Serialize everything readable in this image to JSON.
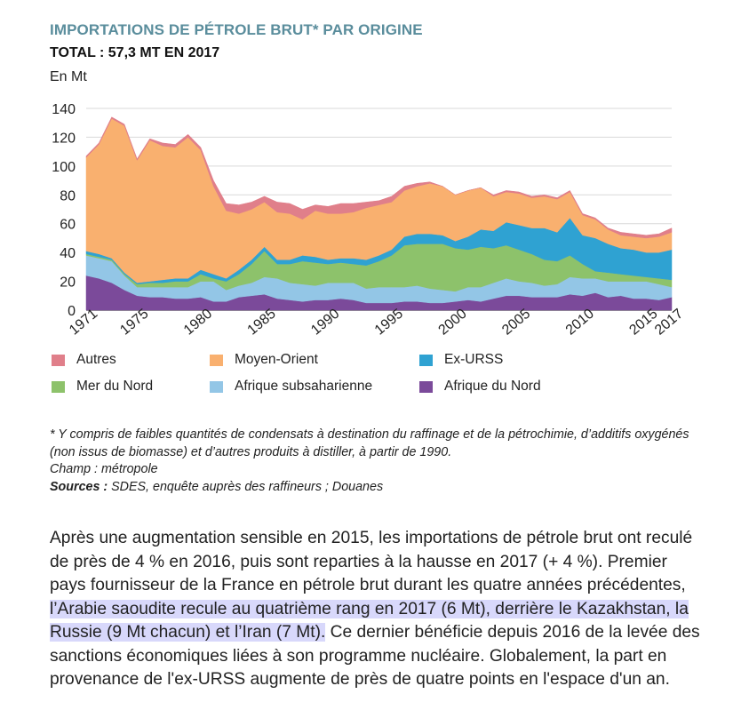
{
  "header": {
    "title": "IMPORTATIONS DE PÉTROLE BRUT* PAR ORIGINE",
    "subtitle": "TOTAL : 57,3 MT EN 2017",
    "unit": "En Mt"
  },
  "colors": {
    "title": "#5a8d9c",
    "highlight": "#d8d8fb"
  },
  "chart_data": {
    "type": "area",
    "stacked": true,
    "title": "IMPORTATIONS DE PÉTROLE BRUT* PAR ORIGINE",
    "subtitle": "TOTAL : 57,3 MT EN 2017",
    "ylabel": "En Mt",
    "xlabel": "",
    "ylim": [
      0,
      140
    ],
    "yticks": [
      0,
      20,
      40,
      60,
      80,
      100,
      120,
      140
    ],
    "xticks": [
      "1971",
      "1975",
      "1980",
      "1985",
      "1990",
      "1995",
      "2000",
      "2005",
      "2010",
      "2015",
      "2017"
    ],
    "grid": true,
    "legend_position": "bottom",
    "x": [
      1971,
      1972,
      1973,
      1974,
      1975,
      1976,
      1977,
      1978,
      1979,
      1980,
      1981,
      1982,
      1983,
      1984,
      1985,
      1986,
      1987,
      1988,
      1989,
      1990,
      1991,
      1992,
      1993,
      1994,
      1995,
      1996,
      1997,
      1998,
      1999,
      2000,
      2001,
      2002,
      2003,
      2004,
      2005,
      2006,
      2007,
      2008,
      2009,
      2010,
      2011,
      2012,
      2013,
      2014,
      2015,
      2016,
      2017
    ],
    "series": [
      {
        "name": "Afrique du Nord",
        "color": "#7b4a9a",
        "values": [
          24,
          22,
          19,
          14,
          10,
          9,
          9,
          8,
          8,
          9,
          6,
          6,
          9,
          10,
          11,
          8,
          7,
          6,
          7,
          7,
          8,
          7,
          5,
          5,
          5,
          6,
          6,
          5,
          5,
          6,
          7,
          6,
          8,
          10,
          10,
          9,
          9,
          9,
          11,
          10,
          12,
          9,
          10,
          8,
          8,
          7,
          9
        ]
      },
      {
        "name": "Afrique subsaharienne",
        "color": "#93c6e6",
        "values": [
          14,
          14,
          15,
          10,
          6,
          7,
          7,
          8,
          8,
          11,
          14,
          8,
          8,
          9,
          12,
          14,
          12,
          12,
          10,
          12,
          11,
          12,
          10,
          11,
          11,
          10,
          11,
          10,
          9,
          7,
          9,
          10,
          11,
          12,
          10,
          10,
          8,
          9,
          12,
          12,
          10,
          11,
          10,
          12,
          12,
          11,
          7
        ]
      },
      {
        "name": "Mer du Nord",
        "color": "#8dc26b",
        "values": [
          1,
          1,
          1,
          1,
          2,
          3,
          3,
          4,
          4,
          5,
          2,
          6,
          8,
          13,
          18,
          10,
          13,
          16,
          16,
          13,
          14,
          13,
          16,
          18,
          22,
          29,
          29,
          31,
          32,
          30,
          26,
          28,
          24,
          23,
          22,
          20,
          18,
          16,
          15,
          10,
          5,
          6,
          5,
          4,
          3,
          4,
          5
        ]
      },
      {
        "name": "Ex-URSS",
        "color": "#2fa2d2",
        "values": [
          2,
          2,
          1,
          1,
          1,
          1,
          2,
          2,
          2,
          3,
          3,
          2,
          3,
          3,
          3,
          3,
          3,
          4,
          4,
          3,
          3,
          4,
          4,
          4,
          4,
          6,
          7,
          7,
          6,
          5,
          9,
          12,
          12,
          16,
          17,
          18,
          22,
          20,
          26,
          20,
          23,
          20,
          18,
          18,
          17,
          18,
          21
        ]
      },
      {
        "name": "Moyen-Orient",
        "color": "#f9b06f",
        "values": [
          65,
          76,
          97,
          102,
          85,
          98,
          93,
          91,
          98,
          83,
          61,
          47,
          39,
          35,
          31,
          33,
          32,
          25,
          32,
          32,
          31,
          32,
          36,
          35,
          33,
          32,
          33,
          35,
          34,
          32,
          32,
          29,
          24,
          21,
          22,
          21,
          22,
          23,
          18,
          14,
          13,
          10,
          9,
          9,
          10,
          11,
          12
        ]
      },
      {
        "name": "Autres",
        "color": "#e07f8a",
        "values": [
          1,
          1,
          1,
          1,
          1,
          1,
          2,
          2,
          2,
          2,
          4,
          5,
          6,
          5,
          4,
          7,
          7,
          7,
          4,
          5,
          7,
          6,
          4,
          3,
          4,
          3,
          2,
          1,
          0,
          0,
          0,
          0,
          1,
          1,
          1,
          1,
          1,
          1,
          1,
          1,
          1,
          1,
          2,
          2,
          2,
          2,
          3
        ]
      }
    ]
  },
  "legend": [
    {
      "label": "Autres",
      "color": "#e07f8a"
    },
    {
      "label": "Moyen-Orient",
      "color": "#f9b06f"
    },
    {
      "label": "Ex-URSS",
      "color": "#2fa2d2"
    },
    {
      "label": "Mer du Nord",
      "color": "#8dc26b"
    },
    {
      "label": "Afrique subsaharienne",
      "color": "#93c6e6"
    },
    {
      "label": "Afrique du Nord",
      "color": "#7b4a9a"
    }
  ],
  "notes": {
    "footnote": "* Y compris de faibles quantités de condensats à destination du raffinage et de la pétrochimie, d’additifs oxygénés (non issus de biomasse) et d’autres produits à distiller, à partir de 1990.",
    "champ": "Champ : métropole",
    "sources_label": "Sources :",
    "sources_text": " SDES, enquête auprès des raffineurs ; Douanes"
  },
  "paragraph": {
    "part1": "Après une augmentation sensible en 2015, les importations de pétrole brut ont reculé de près de 4 % en 2016, puis sont reparties à la hausse en 2017 (+ 4 %). Premier pays fournisseur de la France en pétrole brut durant les quatre années précédentes, ",
    "highlighted": "l’Arabie saoudite recule au quatrième rang en 2017 (6 Mt), derrière le Kazakhstan, la Russie (9 Mt chacun) et l’Iran (7 Mt).",
    "part2": " Ce dernier bénéficie depuis 2016 de la levée des sanctions économiques liées à son programme nucléaire. Globalement, la part en provenance de l'ex-URSS augmente de près de quatre points en l'espace d'un an."
  }
}
